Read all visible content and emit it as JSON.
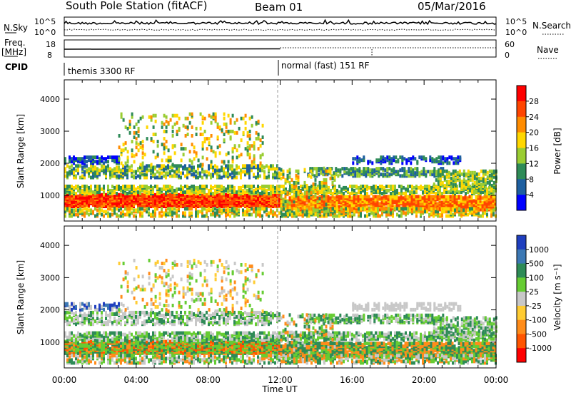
{
  "header": {
    "station": "South Pole Station (fitACF)",
    "beam": "Beam 01",
    "date": "05/Mar/2016"
  },
  "summary": {
    "nsky_label": "N.Sky",
    "nsky_ticks": [
      "10^5",
      "10^0"
    ],
    "nsearch_label": "N.Search",
    "nsearch_ticks": [
      "10^5",
      "10^0"
    ],
    "freq_label_1": "Freq.",
    "freq_label_2": "[MHz]",
    "freq_ticks": [
      "18",
      "8"
    ],
    "nave_label": "Nave",
    "nave_ticks": [
      "60",
      "0"
    ],
    "cpid_label": "CPID",
    "cpid_modes": [
      "themis 3300 RF",
      "normal (fast) 151 RF"
    ]
  },
  "chart_data": [
    {
      "type": "heatmap",
      "quantity": "Power",
      "ylabel": "Slant Range [km]",
      "yticks": [
        "4000",
        "3000",
        "2000",
        "1000"
      ],
      "ylim": [
        200,
        4600
      ],
      "xlim": [
        0,
        24
      ],
      "xtick_values": [
        0,
        4,
        8,
        12,
        16,
        20,
        24
      ],
      "colorbar_label": "Power [dB]",
      "colorbar_ticks": [
        "28",
        "24",
        "20",
        "16",
        "12",
        "8",
        "4"
      ],
      "colorbar_colors": [
        "#ff0000",
        "#ff4500",
        "#ff8c00",
        "#ffd700",
        "#9acd32",
        "#2e8b57",
        "#1e5fa0",
        "#0000ff"
      ]
    },
    {
      "type": "heatmap",
      "quantity": "Velocity",
      "ylabel": "Slant Range [km]",
      "yticks": [
        "4000",
        "3000",
        "2000",
        "1000"
      ],
      "ylim": [
        200,
        4600
      ],
      "xlim": [
        0,
        24
      ],
      "xlabel": "Time UT",
      "xtick_labels": [
        "00:00",
        "04:00",
        "08:00",
        "12:00",
        "16:00",
        "20:00",
        "00:00"
      ],
      "xtick_values": [
        0,
        4,
        8,
        12,
        16,
        20,
        24
      ],
      "colorbar_label": "Velocity [m s⁻¹]",
      "colorbar_ticks": [
        "1000",
        "500",
        "100",
        "25",
        "-25",
        "-100",
        "-500",
        "-1000"
      ],
      "colorbar_colors": [
        "#1f3fbf",
        "#3c78b4",
        "#2e8b57",
        "#66cc33",
        "#c8c8c8",
        "#ffcc33",
        "#ff8c1a",
        "#ff5500",
        "#ff0000"
      ]
    }
  ]
}
